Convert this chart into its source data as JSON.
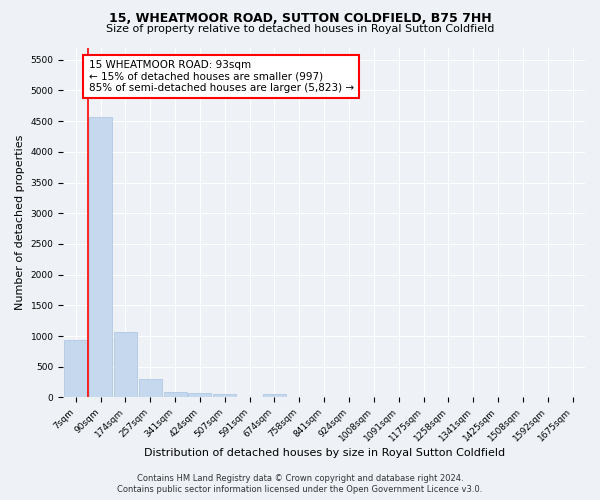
{
  "title": "15, WHEATMOOR ROAD, SUTTON COLDFIELD, B75 7HH",
  "subtitle": "Size of property relative to detached houses in Royal Sutton Coldfield",
  "xlabel": "Distribution of detached houses by size in Royal Sutton Coldfield",
  "ylabel": "Number of detached properties",
  "bar_color": "#c5d8ed",
  "bar_edge_color": "#a8c4e0",
  "bin_labels": [
    "7sqm",
    "90sqm",
    "174sqm",
    "257sqm",
    "341sqm",
    "424sqm",
    "507sqm",
    "591sqm",
    "674sqm",
    "758sqm",
    "841sqm",
    "924sqm",
    "1008sqm",
    "1091sqm",
    "1175sqm",
    "1258sqm",
    "1341sqm",
    "1425sqm",
    "1508sqm",
    "1592sqm",
    "1675sqm"
  ],
  "bar_heights": [
    930,
    4560,
    1070,
    300,
    90,
    65,
    60,
    0,
    60,
    0,
    0,
    0,
    0,
    0,
    0,
    0,
    0,
    0,
    0,
    0,
    0
  ],
  "ylim": [
    0,
    5700
  ],
  "yticks": [
    0,
    500,
    1000,
    1500,
    2000,
    2500,
    3000,
    3500,
    4000,
    4500,
    5000,
    5500
  ],
  "annotation_text": "15 WHEATMOOR ROAD: 93sqm\n← 15% of detached houses are smaller (997)\n85% of semi-detached houses are larger (5,823) →",
  "annotation_box_color": "white",
  "annotation_box_edge_color": "red",
  "vline_color": "red",
  "footer_line1": "Contains HM Land Registry data © Crown copyright and database right 2024.",
  "footer_line2": "Contains public sector information licensed under the Open Government Licence v3.0.",
  "background_color": "#eef2f7",
  "grid_color": "white",
  "title_fontsize": 9,
  "subtitle_fontsize": 8,
  "axis_label_fontsize": 8,
  "tick_fontsize": 6.5,
  "annotation_fontsize": 7.5,
  "footer_fontsize": 6
}
